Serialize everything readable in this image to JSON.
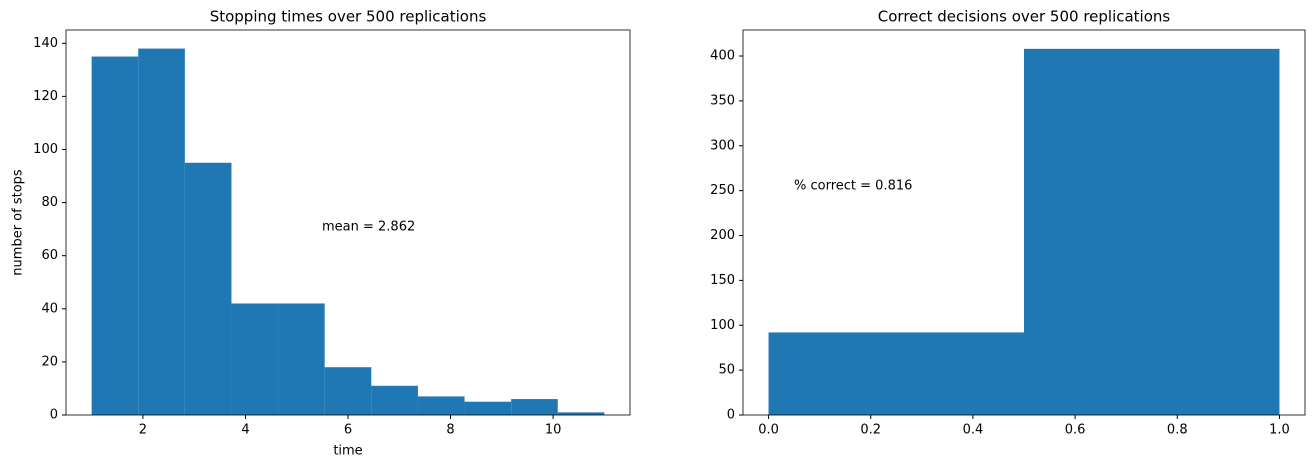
{
  "chart_data": [
    {
      "type": "histogram",
      "title": "Stopping times over 500 replications",
      "x_label": "time",
      "y_label": "number of stops",
      "annotation": "mean = 2.862",
      "color": "#1f77b4",
      "bins": [
        1,
        1.909,
        2.818,
        3.727,
        4.636,
        5.545,
        6.455,
        7.364,
        8.273,
        9.182,
        10.091,
        11
      ],
      "values": [
        135,
        138,
        95,
        42,
        42,
        18,
        11,
        7,
        5,
        6,
        1
      ],
      "xlim": [
        0.5,
        11.5
      ],
      "ylim": [
        0,
        145
      ],
      "xticks": [
        2,
        4,
        6,
        8,
        10
      ],
      "yticks": [
        0,
        20,
        40,
        60,
        80,
        100,
        120,
        140
      ]
    },
    {
      "type": "histogram",
      "title": "Correct decisions over 500 replications",
      "annotation": "% correct = 0.816",
      "color": "#1f77b4",
      "bins": [
        0,
        0.5,
        1
      ],
      "values": [
        92,
        408
      ],
      "xlim": [
        -0.05,
        1.05
      ],
      "ylim": [
        0,
        429
      ],
      "xticks": [
        {
          "value": 0,
          "label": "0.0"
        },
        {
          "value": 0.2,
          "label": "0.2"
        },
        {
          "value": 0.4,
          "label": "0.4"
        },
        {
          "value": 0.6,
          "label": "0.6"
        },
        {
          "value": 0.8,
          "label": "0.8"
        },
        {
          "value": 1,
          "label": "1.0"
        }
      ],
      "yticks": [
        0,
        50,
        100,
        150,
        200,
        250,
        300,
        350,
        400
      ]
    }
  ]
}
